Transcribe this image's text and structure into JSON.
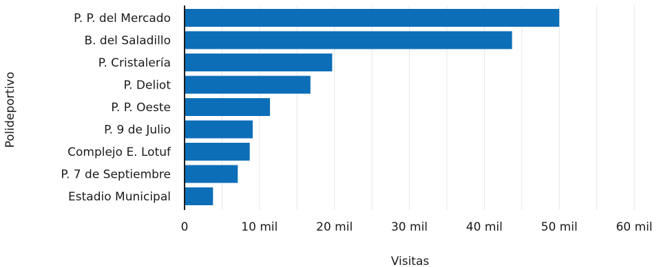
{
  "chart_data": {
    "type": "bar",
    "orientation": "horizontal",
    "categories": [
      "P. P. del Mercado",
      "B. del Saladillo",
      "P. Cristalería",
      "P. Deliot",
      "P. P. Oeste",
      "P. 9 de Julio",
      "Complejo E. Lotuf",
      "P. 7 de Septiembre",
      "Estadio Municipal"
    ],
    "values": [
      50000,
      43700,
      19700,
      16800,
      11400,
      9100,
      8700,
      7100,
      3800
    ],
    "xlabel": "Visitas",
    "ylabel": "Polideportivo",
    "xlim": [
      0,
      60000
    ],
    "xticks": [
      0,
      10000,
      20000,
      30000,
      40000,
      50000,
      60000
    ],
    "xtick_labels": [
      "0",
      "10 mil",
      "20 mil",
      "30 mil",
      "40 mil",
      "50 mil",
      "60 mil"
    ],
    "grid": true,
    "bar_color": "#0d6eb8"
  }
}
